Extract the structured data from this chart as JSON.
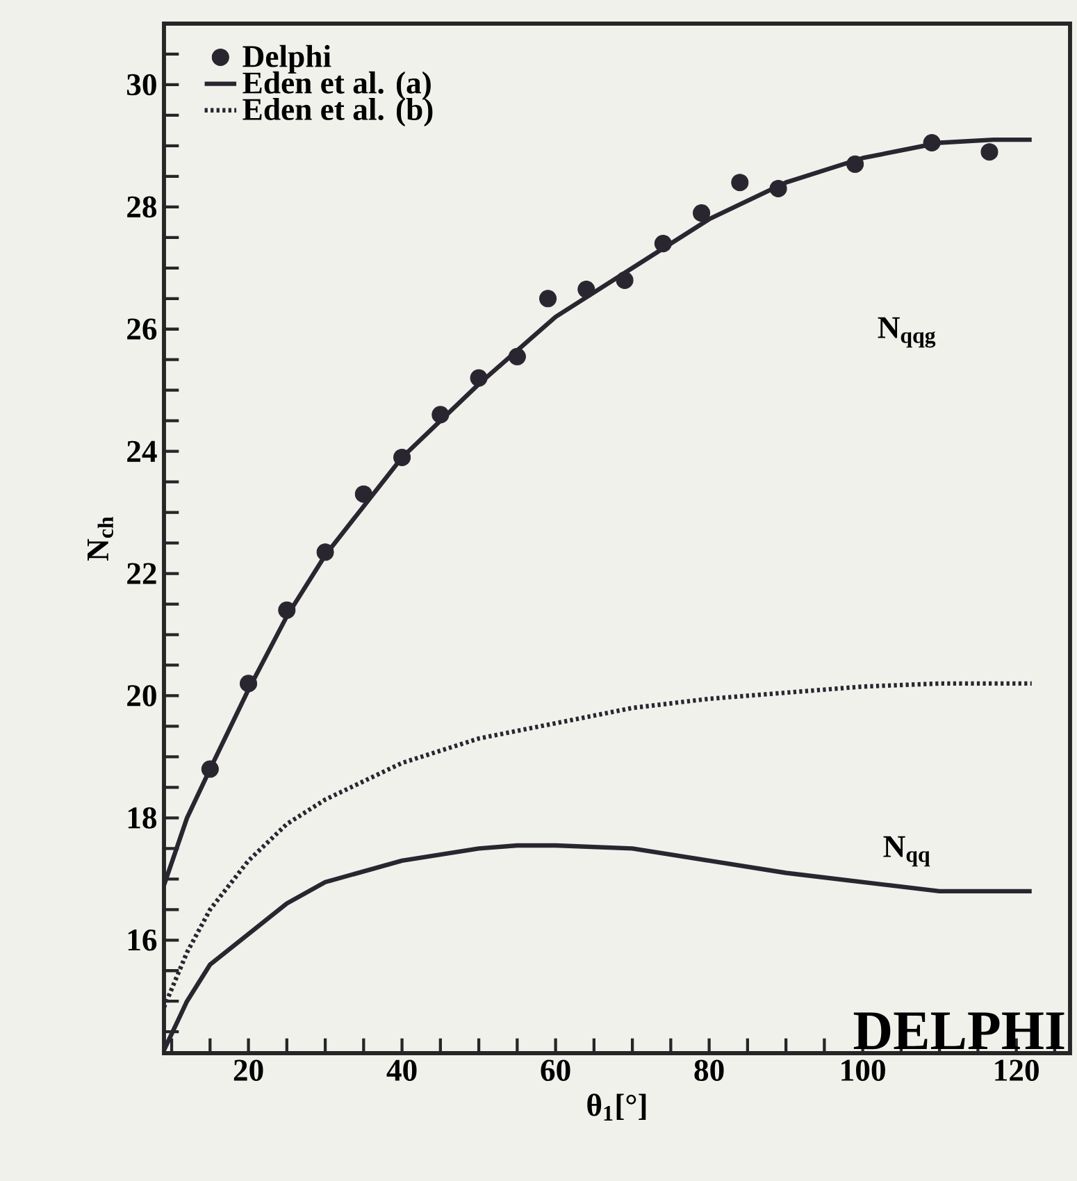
{
  "chart_data": {
    "type": "line",
    "xlabel": "θ$_{1}$[°]",
    "ylabel": "N$_{ch}$",
    "xlim": [
      9,
      127
    ],
    "ylim": [
      14.15,
      31
    ],
    "xticks": [
      {
        "value": 10,
        "label": null
      },
      {
        "value": 15,
        "label": null
      },
      20,
      {
        "value": 25,
        "label": null
      },
      {
        "value": 30,
        "label": null
      },
      {
        "value": 35,
        "label": null
      },
      40,
      {
        "value": 45,
        "label": null
      },
      {
        "value": 50,
        "label": null
      },
      {
        "value": 55,
        "label": null
      },
      60,
      {
        "value": 65,
        "label": null
      },
      {
        "value": 70,
        "label": null
      },
      {
        "value": 75,
        "label": null
      },
      80,
      {
        "value": 85,
        "label": null
      },
      {
        "value": 90,
        "label": null
      },
      {
        "value": 95,
        "label": null
      },
      100,
      {
        "value": 105,
        "label": null
      },
      {
        "value": 110,
        "label": null
      },
      {
        "value": 115,
        "label": null
      },
      120,
      {
        "value": 125,
        "label": null
      }
    ],
    "yticks": [
      {
        "value": 14.5,
        "label": null
      },
      {
        "value": 15,
        "label": null
      },
      {
        "value": 15.5,
        "label": null
      },
      16,
      {
        "value": 16.5,
        "label": null
      },
      {
        "value": 17,
        "label": null
      },
      {
        "value": 17.5,
        "label": null
      },
      18,
      {
        "value": 18.5,
        "label": null
      },
      {
        "value": 19,
        "label": null
      },
      {
        "value": 19.5,
        "label": null
      },
      20,
      {
        "value": 20.5,
        "label": null
      },
      {
        "value": 21,
        "label": null
      },
      {
        "value": 21.5,
        "label": null
      },
      22,
      {
        "value": 22.5,
        "label": null
      },
      {
        "value": 23,
        "label": null
      },
      {
        "value": 23.5,
        "label": null
      },
      24,
      {
        "value": 24.5,
        "label": null
      },
      {
        "value": 25,
        "label": null
      },
      {
        "value": 25.5,
        "label": null
      },
      26,
      {
        "value": 26.5,
        "label": null
      },
      {
        "value": 27,
        "label": null
      },
      {
        "value": 27.5,
        "label": null
      },
      28,
      {
        "value": 28.5,
        "label": null
      },
      {
        "value": 29,
        "label": null
      },
      {
        "value": 29.5,
        "label": null
      },
      30,
      {
        "value": 30.5,
        "label": null
      }
    ],
    "legend": "top left",
    "series": [
      {
        "name": "Delphi",
        "type": "scatter",
        "color": "#2a2630",
        "x": [
          15,
          20,
          25,
          30,
          35,
          40,
          45,
          50,
          55,
          59,
          64,
          69,
          74,
          79,
          84,
          89,
          99,
          109,
          116.5
        ],
        "values": [
          18.8,
          20.2,
          21.4,
          22.35,
          23.3,
          23.9,
          24.6,
          25.2,
          25.55,
          26.5,
          26.65,
          26.8,
          27.4,
          27.9,
          28.4,
          28.3,
          28.7,
          29.05,
          28.9
        ]
      },
      {
        "name": "Eden et al. (a)",
        "line_style": "solid",
        "color": "#2a2630",
        "x": [
          9,
          12,
          15,
          20,
          25,
          30,
          40,
          50,
          60,
          70,
          80,
          90,
          100,
          110,
          117,
          122
        ],
        "values": [
          16.9,
          18.0,
          18.8,
          20.1,
          21.3,
          22.3,
          23.9,
          25.1,
          26.2,
          27.0,
          27.8,
          28.4,
          28.8,
          29.05,
          29.1,
          29.1
        ]
      },
      {
        "name": "Eden et al. (b)",
        "line_style": "dotted",
        "color": "#2a2630",
        "x": [
          9,
          12,
          15,
          20,
          25,
          30,
          40,
          50,
          60,
          70,
          80,
          90,
          100,
          110,
          122
        ],
        "values": [
          14.9,
          15.8,
          16.5,
          17.3,
          17.9,
          18.3,
          18.9,
          19.3,
          19.55,
          19.8,
          19.95,
          20.05,
          20.15,
          20.2,
          20.2
        ]
      },
      {
        "line_style": "solid",
        "color": "#2a2630",
        "x": [
          9,
          12,
          15,
          20,
          25,
          30,
          40,
          50,
          55,
          60,
          70,
          80,
          90,
          100,
          110,
          122
        ],
        "values": [
          14.2,
          15.0,
          15.6,
          16.1,
          16.6,
          16.95,
          17.3,
          17.5,
          17.55,
          17.55,
          17.5,
          17.3,
          17.1,
          16.95,
          16.8,
          16.8
        ]
      }
    ],
    "annotations": [
      "N$_{qqg}$",
      "N$_{qq}$",
      "DELPHI"
    ]
  }
}
